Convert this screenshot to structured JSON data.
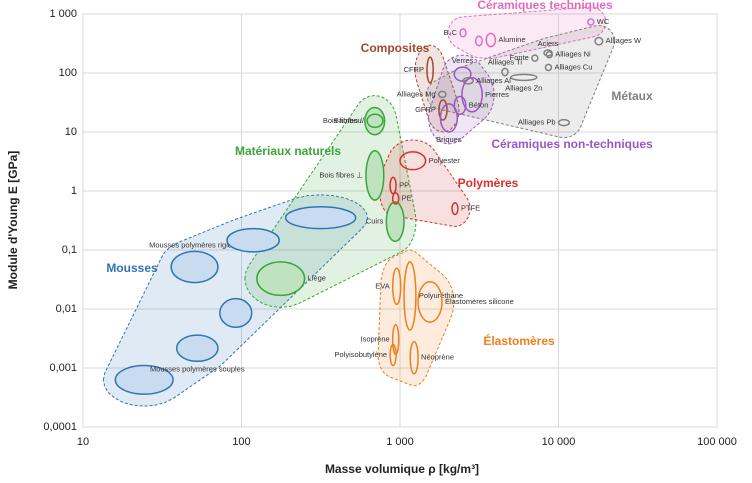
{
  "chart_data": {
    "type": "ashby",
    "x_label": "Masse volumique ρ [kg/m³]",
    "y_label": "Module d'Young E [GPa]",
    "xscale": "log",
    "yscale": "log",
    "grid": true,
    "xlim": [
      10,
      100000
    ],
    "xticks": [
      10,
      100,
      {
        "value": 1000,
        "label": "1 000"
      },
      {
        "value": 10000,
        "label": "10 000"
      },
      {
        "value": 100000,
        "label": "100 000"
      }
    ],
    "ylim": [
      0.0001,
      1000
    ],
    "yticks": [
      {
        "value": 0.0001,
        "label": "0,0001"
      },
      {
        "value": 0.001,
        "label": "0,001"
      },
      {
        "value": 0.01,
        "label": "0,01"
      },
      {
        "value": 0.1,
        "label": "0,1"
      },
      1,
      10,
      100,
      {
        "value": 1000,
        "label": "1 000"
      }
    ],
    "families": [
      {
        "name": "Mousses",
        "color": "#2e75b6",
        "materials": [
          {
            "name": null,
            "x": [
              16,
              37
            ],
            "y": [
              0.00036,
              0.0011
            ]
          },
          {
            "name": "Mousses polymères souples",
            "x": [
              39,
              71
            ],
            "y": [
              0.0013,
              0.0036
            ]
          },
          {
            "name": null,
            "x": [
              73,
              116
            ],
            "y": [
              0.0049,
              0.015
            ]
          },
          {
            "name": "Mousses polymères rigides",
            "x": [
              36,
              71
            ],
            "y": [
              0.028,
              0.095
            ]
          },
          {
            "name": null,
            "x": [
              81,
              173
            ],
            "y": [
              0.093,
              0.23
            ]
          },
          {
            "name": null,
            "x": [
              190,
              525
            ],
            "y": [
              0.23,
              0.54
            ]
          }
        ]
      },
      {
        "name": "Matériaux naturels",
        "color": "#3aa53a",
        "materials": [
          {
            "name": "Bambou",
            "x": [
              600,
              800
            ],
            "y": [
              9,
              26
            ]
          },
          {
            "name": "Bois fibres //",
            "x": [
              620,
              780
            ],
            "y": [
              12,
              20
            ]
          },
          {
            "name": "Bois fibres ⊥",
            "x": [
              610,
              790
            ],
            "y": [
              0.7,
              4.8
            ]
          },
          {
            "name": "Cuirs",
            "x": [
              820,
              1060
            ],
            "y": [
              0.14,
              0.65
            ]
          },
          {
            "name": "Liège",
            "x": [
              125,
              250
            ],
            "y": [
              0.017,
              0.063
            ]
          }
        ]
      },
      {
        "name": "Polymères",
        "color": "#d9302c",
        "materials": [
          {
            "name": "Polyester",
            "x": [
              1000,
              1450
            ],
            "y": [
              2.3,
              4.6
            ]
          },
          {
            "name": "PP",
            "x": [
              870,
              940
            ],
            "y": [
              0.9,
              1.7
            ]
          },
          {
            "name": "PE",
            "x": [
              900,
              980
            ],
            "y": [
              0.6,
              0.93
            ]
          },
          {
            "name": "PTFE",
            "x": [
              2130,
              2320
            ],
            "y": [
              0.4,
              0.63
            ]
          }
        ]
      },
      {
        "name": "Élastomères",
        "color": "#f07f1a",
        "materials": [
          {
            "name": "Polyuréthane",
            "x": [
              1060,
              1260
            ],
            "y": [
              0.0044,
              0.063
            ]
          },
          {
            "name": "EVA",
            "x": [
              900,
              1010
            ],
            "y": [
              0.012,
              0.049
            ]
          },
          {
            "name": "Élastomères silicone",
            "x": [
              1300,
              1840
            ],
            "y": [
              0.006,
              0.029
            ]
          },
          {
            "name": "Isoprène",
            "x": [
              900,
              980
            ],
            "y": [
              0.0017,
              0.0054
            ]
          },
          {
            "name": "Polyisobutylène",
            "x": [
              870,
              940
            ],
            "y": [
              0.0011,
              0.0025
            ]
          },
          {
            "name": "Néoprène",
            "x": [
              1160,
              1300
            ],
            "y": [
              0.0008,
              0.0028
            ]
          }
        ]
      },
      {
        "name": "Composites",
        "color": "#9e4a2e",
        "materials": [
          {
            "name": "CFRP",
            "x": [
              1480,
              1620
            ],
            "y": [
              68,
              186
            ]
          },
          {
            "name": "GFRP",
            "x": [
              1760,
              1980
            ],
            "y": [
              16,
              35
            ]
          }
        ]
      },
      {
        "name": "Céramiques non-techniques",
        "color": "#9a57c4",
        "materials": [
          {
            "name": "Verres",
            "x": [
              2200,
              2800
            ],
            "y": [
              73,
              126
            ]
          },
          {
            "name": "Pierres",
            "x": [
              2460,
              3300
            ],
            "y": [
              22,
              83
            ]
          },
          {
            "name": "Béton",
            "x": [
              2200,
              2600
            ],
            "y": [
              20,
              40
            ]
          },
          {
            "name": "Briques",
            "x": [
              1800,
              2300
            ],
            "y": [
              10,
              30
            ]
          }
        ]
      },
      {
        "name": "Céramiques techniques",
        "color": "#e36bbf",
        "materials": [
          {
            "name": "B₄C",
            "x": [
              2400,
              2600
            ],
            "y": [
              410,
              560
            ]
          },
          {
            "name": null,
            "x": [
              3000,
              3300
            ],
            "y": [
              290,
              420
            ]
          },
          {
            "name": "Alumine",
            "x": [
              3500,
              4000
            ],
            "y": [
              280,
              470
            ]
          },
          {
            "name": "WC",
            "x": [
              15300,
              16700
            ],
            "y": [
              650,
              820
            ]
          }
        ]
      },
      {
        "name": "Métaux",
        "color": "#808080",
        "materials": [
          {
            "name": "Aciers",
            "x": [
              8100,
              9100
            ],
            "y": [
              195,
              245
            ]
          },
          {
            "name": "Fonte",
            "x": [
              6800,
              7400
            ],
            "y": [
              160,
              200
            ]
          },
          {
            "name": "Alliages Ni",
            "x": [
              8500,
              9000
            ],
            "y": [
              190,
              220
            ]
          },
          {
            "name": "Alliages W",
            "x": [
              17000,
              19000
            ],
            "y": [
              300,
              400
            ]
          },
          {
            "name": "Alliages Cu",
            "x": [
              8300,
              9000
            ],
            "y": [
              110,
              140
            ]
          },
          {
            "name": "Alliages Ti",
            "x": [
              4400,
              4800
            ],
            "y": [
              90,
              120
            ]
          },
          {
            "name": "Alliages Zn",
            "x": [
              5000,
              7300
            ],
            "y": [
              75,
              95
            ]
          },
          {
            "name": "Alliages Al",
            "x": [
              2500,
              2900
            ],
            "y": [
              68,
              80
            ]
          },
          {
            "name": "Alliages Mg",
            "x": [
              1750,
              1950
            ],
            "y": [
              40,
              47
            ]
          },
          {
            "name": "Alliages Pb",
            "x": [
              10000,
              11700
            ],
            "y": [
              13,
              16
            ]
          }
        ]
      }
    ]
  }
}
